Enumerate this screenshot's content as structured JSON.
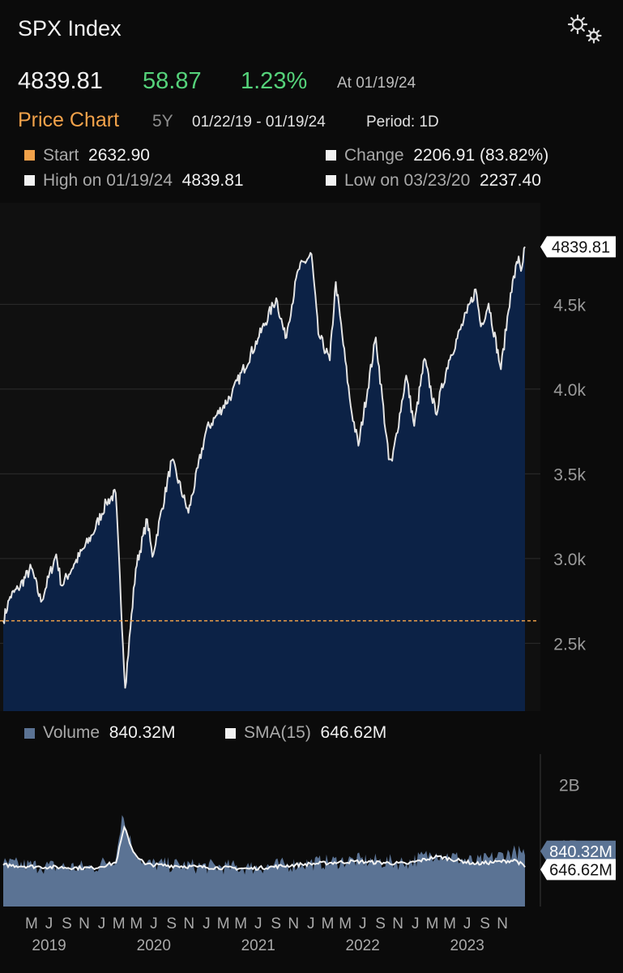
{
  "header": {
    "title": "SPX Index",
    "last_price": "4839.81",
    "change": "58.87",
    "change_pct": "1.23%",
    "as_of": "At 01/19/24"
  },
  "subheader": {
    "chart_title": "Price Chart",
    "range": "5Y",
    "dates": "01/22/19 - 01/19/24",
    "period": "Period: 1D"
  },
  "stats": {
    "start_label": "Start",
    "start_value": "2632.90",
    "change_label": "Change",
    "change_value": "2206.91 (83.82%)",
    "high_label": "High on 01/19/24",
    "high_value": "4839.81",
    "low_label": "Low on 03/23/20",
    "low_value": "2237.40"
  },
  "volume_legend": {
    "volume_label": "Volume",
    "volume_value": "840.32M",
    "sma_label": "SMA(15)",
    "sma_value": "646.62M"
  },
  "colors": {
    "background": "#0b0b0b",
    "area_fill": "#0c2246",
    "price_line": "#e4e4e4",
    "start_line": "#f2a24a",
    "volume_fill": "#5b7394",
    "positive": "#55d27a"
  },
  "chart_data": [
    {
      "type": "area",
      "series": [
        {
          "name": "SPX Index",
          "points": [
            [
              "2019-01-22",
              2632.9
            ],
            [
              "2019-02-15",
              2775
            ],
            [
              "2019-03-15",
              2822
            ],
            [
              "2019-04-30",
              2945
            ],
            [
              "2019-06-03",
              2745
            ],
            [
              "2019-07-26",
              3025
            ],
            [
              "2019-08-14",
              2840
            ],
            [
              "2019-09-30",
              2975
            ],
            [
              "2019-11-29",
              3140
            ],
            [
              "2020-01-17",
              3330
            ],
            [
              "2020-02-19",
              3386
            ],
            [
              "2020-03-23",
              2237.4
            ],
            [
              "2020-04-29",
              2940
            ],
            [
              "2020-06-08",
              3232
            ],
            [
              "2020-06-26",
              3010
            ],
            [
              "2020-09-02",
              3580
            ],
            [
              "2020-10-30",
              3270
            ],
            [
              "2020-12-31",
              3756
            ],
            [
              "2021-03-31",
              3973
            ],
            [
              "2021-06-30",
              4297
            ],
            [
              "2021-09-02",
              4537
            ],
            [
              "2021-10-04",
              4300
            ],
            [
              "2021-11-18",
              4705
            ],
            [
              "2022-01-03",
              4796
            ],
            [
              "2022-01-27",
              4326
            ],
            [
              "2022-03-08",
              4170
            ],
            [
              "2022-03-29",
              4632
            ],
            [
              "2022-05-20",
              3900
            ],
            [
              "2022-06-16",
              3666
            ],
            [
              "2022-08-16",
              4305
            ],
            [
              "2022-09-30",
              3585
            ],
            [
              "2022-10-12",
              3577
            ],
            [
              "2022-11-30",
              4080
            ],
            [
              "2022-12-28",
              3783
            ],
            [
              "2023-02-02",
              4179
            ],
            [
              "2023-03-13",
              3855
            ],
            [
              "2023-04-28",
              4170
            ],
            [
              "2023-06-30",
              4450
            ],
            [
              "2023-07-31",
              4589
            ],
            [
              "2023-08-18",
              4370
            ],
            [
              "2023-09-14",
              4505
            ],
            [
              "2023-10-27",
              4117
            ],
            [
              "2023-11-30",
              4568
            ],
            [
              "2023-12-28",
              4783
            ],
            [
              "2024-01-05",
              4697
            ],
            [
              "2024-01-19",
              4839.81
            ]
          ]
        }
      ],
      "reference_lines": [
        {
          "name": "Start",
          "value": 2632.9
        }
      ],
      "last_value_tag": "4839.81",
      "y_ticks": [
        {
          "value": 2500,
          "label": "2.5k"
        },
        {
          "value": 3000,
          "label": "3.0k"
        },
        {
          "value": 3500,
          "label": "3.5k"
        },
        {
          "value": 4000,
          "label": "4.0k"
        },
        {
          "value": 4500,
          "label": "4.5k"
        }
      ],
      "ylim": [
        2100,
        5100
      ],
      "xlim": [
        "2019-01-22",
        "2024-01-19"
      ],
      "grid": true
    },
    {
      "type": "area",
      "series": [
        {
          "name": "Volume",
          "points": [
            [
              "2019-01-22",
              700000000
            ],
            [
              "2019-06-01",
              660000000
            ],
            [
              "2019-12-01",
              640000000
            ],
            [
              "2020-02-20",
              800000000
            ],
            [
              "2020-03-12",
              1500000000
            ],
            [
              "2020-04-15",
              1000000000
            ],
            [
              "2020-06-01",
              700000000
            ],
            [
              "2020-12-01",
              660000000
            ],
            [
              "2021-06-01",
              640000000
            ],
            [
              "2021-12-01",
              700000000
            ],
            [
              "2022-06-01",
              760000000
            ],
            [
              "2022-12-01",
              720000000
            ],
            [
              "2023-03-15",
              880000000
            ],
            [
              "2023-08-01",
              720000000
            ],
            [
              "2023-12-18",
              900000000
            ],
            [
              "2024-01-19",
              840320000
            ]
          ]
        },
        {
          "name": "SMA(15)",
          "points": [
            [
              "2019-01-22",
              680000000
            ],
            [
              "2019-06-01",
              650000000
            ],
            [
              "2019-12-01",
              630000000
            ],
            [
              "2020-02-20",
              720000000
            ],
            [
              "2020-03-20",
              1300000000
            ],
            [
              "2020-04-20",
              900000000
            ],
            [
              "2020-06-01",
              690000000
            ],
            [
              "2020-12-01",
              650000000
            ],
            [
              "2021-06-01",
              620000000
            ],
            [
              "2021-12-01",
              690000000
            ],
            [
              "2022-06-01",
              740000000
            ],
            [
              "2022-12-01",
              700000000
            ],
            [
              "2023-03-20",
              820000000
            ],
            [
              "2023-08-01",
              700000000
            ],
            [
              "2023-12-18",
              760000000
            ],
            [
              "2024-01-19",
              646620000
            ]
          ]
        }
      ],
      "last_value_tags": [
        "840.32M",
        "646.62M"
      ],
      "y_ticks": [
        {
          "value": 1000000000,
          "label": "1B"
        },
        {
          "value": 2000000000,
          "label": "2B"
        }
      ],
      "ylim": [
        0,
        2500000000
      ],
      "x_tick_labels": [
        {
          "date": "2019-05-01",
          "label": "M"
        },
        {
          "date": "2019-07-01",
          "label": "J"
        },
        {
          "date": "2019-09-01",
          "label": "S"
        },
        {
          "date": "2019-11-01",
          "label": "N"
        },
        {
          "date": "2020-01-01",
          "label": "J"
        },
        {
          "date": "2020-03-01",
          "label": "M"
        },
        {
          "date": "2020-05-01",
          "label": "M"
        },
        {
          "date": "2020-07-01",
          "label": "J"
        },
        {
          "date": "2020-09-01",
          "label": "S"
        },
        {
          "date": "2020-11-01",
          "label": "N"
        },
        {
          "date": "2021-01-01",
          "label": "J"
        },
        {
          "date": "2021-03-01",
          "label": "M"
        },
        {
          "date": "2021-05-01",
          "label": "M"
        },
        {
          "date": "2021-07-01",
          "label": "J"
        },
        {
          "date": "2021-09-01",
          "label": "S"
        },
        {
          "date": "2021-11-01",
          "label": "N"
        },
        {
          "date": "2022-01-01",
          "label": "J"
        },
        {
          "date": "2022-03-01",
          "label": "M"
        },
        {
          "date": "2022-05-01",
          "label": "M"
        },
        {
          "date": "2022-07-01",
          "label": "J"
        },
        {
          "date": "2022-09-01",
          "label": "S"
        },
        {
          "date": "2022-11-01",
          "label": "N"
        },
        {
          "date": "2023-01-01",
          "label": "J"
        },
        {
          "date": "2023-03-01",
          "label": "M"
        },
        {
          "date": "2023-05-01",
          "label": "M"
        },
        {
          "date": "2023-07-01",
          "label": "J"
        },
        {
          "date": "2023-09-01",
          "label": "S"
        },
        {
          "date": "2023-11-01",
          "label": "N"
        }
      ],
      "year_labels": [
        {
          "date": "2019-07-01",
          "label": "2019"
        },
        {
          "date": "2020-07-01",
          "label": "2020"
        },
        {
          "date": "2021-07-01",
          "label": "2021"
        },
        {
          "date": "2022-07-01",
          "label": "2022"
        },
        {
          "date": "2023-07-01",
          "label": "2023"
        }
      ]
    }
  ]
}
